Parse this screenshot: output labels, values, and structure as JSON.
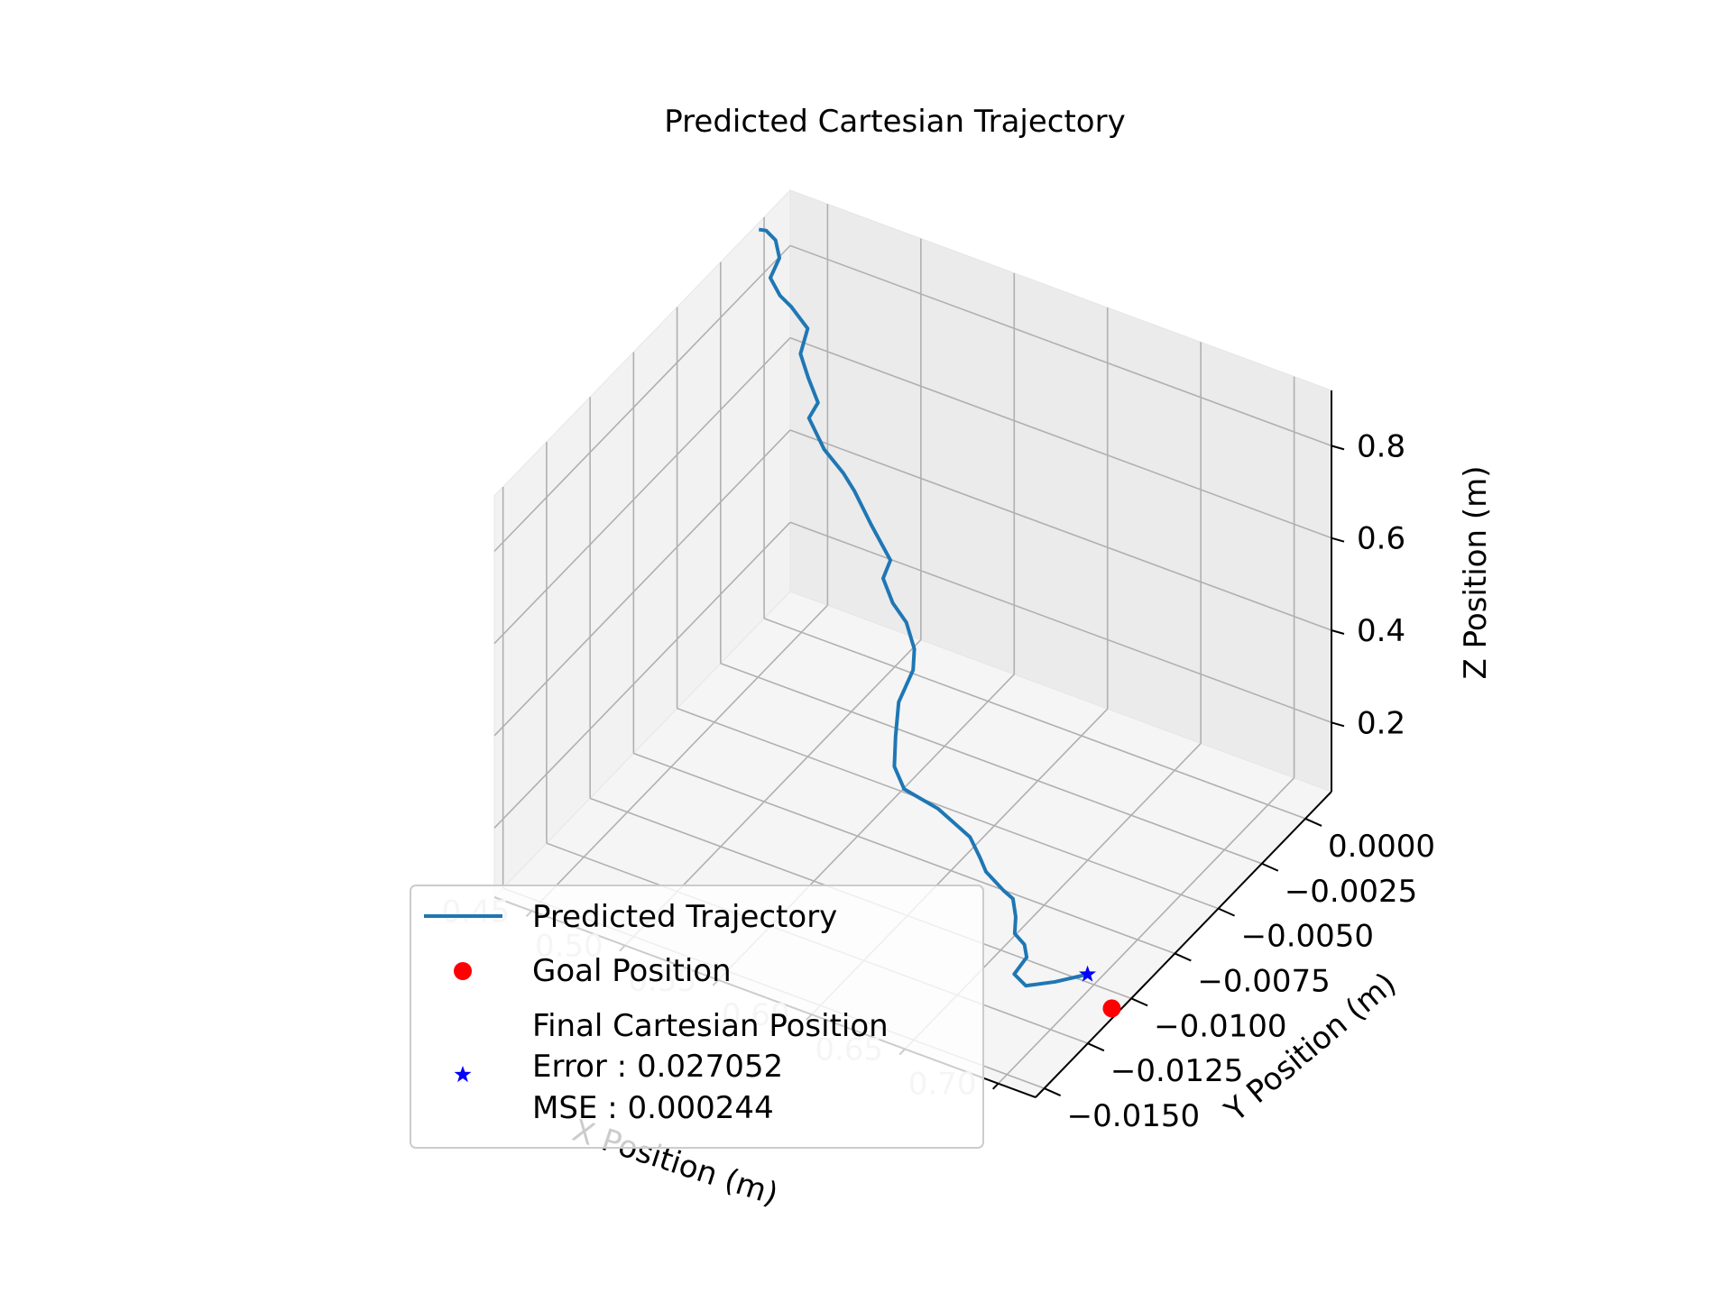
{
  "chart_data": {
    "type": "line",
    "title": "Predicted Cartesian Trajectory",
    "projection": "3d",
    "xlabel": "X Position (m)",
    "ylabel": "Y Position (m)",
    "zlabel": "Z Position (m)",
    "xlim": [
      0.43,
      0.72
    ],
    "ylim": [
      -0.0155,
      0.0015
    ],
    "zlim": [
      0.05,
      0.92
    ],
    "x_ticks": [
      0.45,
      0.5,
      0.55,
      0.6,
      0.65,
      0.7
    ],
    "x_tick_labels": [
      "0.45",
      "0.50",
      "0.55",
      "0.60",
      "0.65",
      "0.70"
    ],
    "y_ticks": [
      0.0,
      -0.0025,
      -0.005,
      -0.0075,
      -0.01,
      -0.0125,
      -0.015
    ],
    "y_tick_labels": [
      "0.0000",
      "−0.0025",
      "−0.0050",
      "−0.0075",
      "−0.0100",
      "−0.0125",
      "−0.0150"
    ],
    "z_ticks": [
      0.2,
      0.4,
      0.6,
      0.8
    ],
    "z_tick_labels": [
      "0.2",
      "0.4",
      "0.6",
      "0.8"
    ],
    "grid": true,
    "legend_position": "lower-left",
    "colors": {
      "trajectory": "#1f77b4",
      "goal": "#ff0000",
      "final": "#0000ff"
    },
    "series": [
      {
        "name": "Predicted Trajectory",
        "kind": "line",
        "x": [
          0.43,
          0.432,
          0.438,
          0.441,
          0.438,
          0.445,
          0.452,
          0.458,
          0.456,
          0.463,
          0.471,
          0.468,
          0.479,
          0.492,
          0.496,
          0.507,
          0.521,
          0.518,
          0.526,
          0.537,
          0.545,
          0.549,
          0.545,
          0.548,
          0.552,
          0.561,
          0.58,
          0.6,
          0.61,
          0.616,
          0.63,
          0.637,
          0.645,
          0.651,
          0.659,
          0.663,
          0.661,
          0.67,
          0.68,
          0.69
        ],
        "y": [
          -0.0003,
          -0.0001,
          -0.0002,
          -0.0003,
          -0.0005,
          -0.0007,
          -0.0008,
          -0.0005,
          -0.0007,
          -0.001,
          -0.0013,
          -0.0015,
          -0.0018,
          -0.0021,
          -0.0019,
          -0.0021,
          -0.0025,
          -0.0026,
          -0.0029,
          -0.0033,
          -0.0037,
          -0.0042,
          -0.0046,
          -0.0051,
          -0.0056,
          -0.006,
          -0.0061,
          -0.0064,
          -0.0069,
          -0.0072,
          -0.0077,
          -0.0079,
          -0.0086,
          -0.0093,
          -0.0096,
          -0.0099,
          -0.0104,
          -0.0107,
          -0.0101,
          -0.0093
        ],
        "z": [
          0.905,
          0.898,
          0.89,
          0.86,
          0.82,
          0.8,
          0.79,
          0.74,
          0.69,
          0.66,
          0.63,
          0.6,
          0.56,
          0.54,
          0.5,
          0.45,
          0.41,
          0.37,
          0.34,
          0.33,
          0.3,
          0.28,
          0.22,
          0.17,
          0.13,
          0.11,
          0.1,
          0.08,
          0.07,
          0.06,
          0.06,
          0.06,
          0.06,
          0.06,
          0.06,
          0.05,
          0.03,
          0.03,
          0.03,
          0.03
        ]
      },
      {
        "name": "Goal Position",
        "kind": "point",
        "marker": "circle",
        "x": 0.717,
        "y": -0.0108,
        "z": 0.055
      },
      {
        "name": "Final Cartesian Position\nError : 0.027052\nMSE : 0.000244",
        "kind": "point",
        "marker": "star",
        "x": 0.69,
        "y": -0.0093,
        "z": 0.03
      }
    ],
    "legend": [
      "Predicted Trajectory",
      "Goal Position",
      "Final Cartesian Position",
      "Error : 0.027052",
      "MSE : 0.000244"
    ]
  }
}
